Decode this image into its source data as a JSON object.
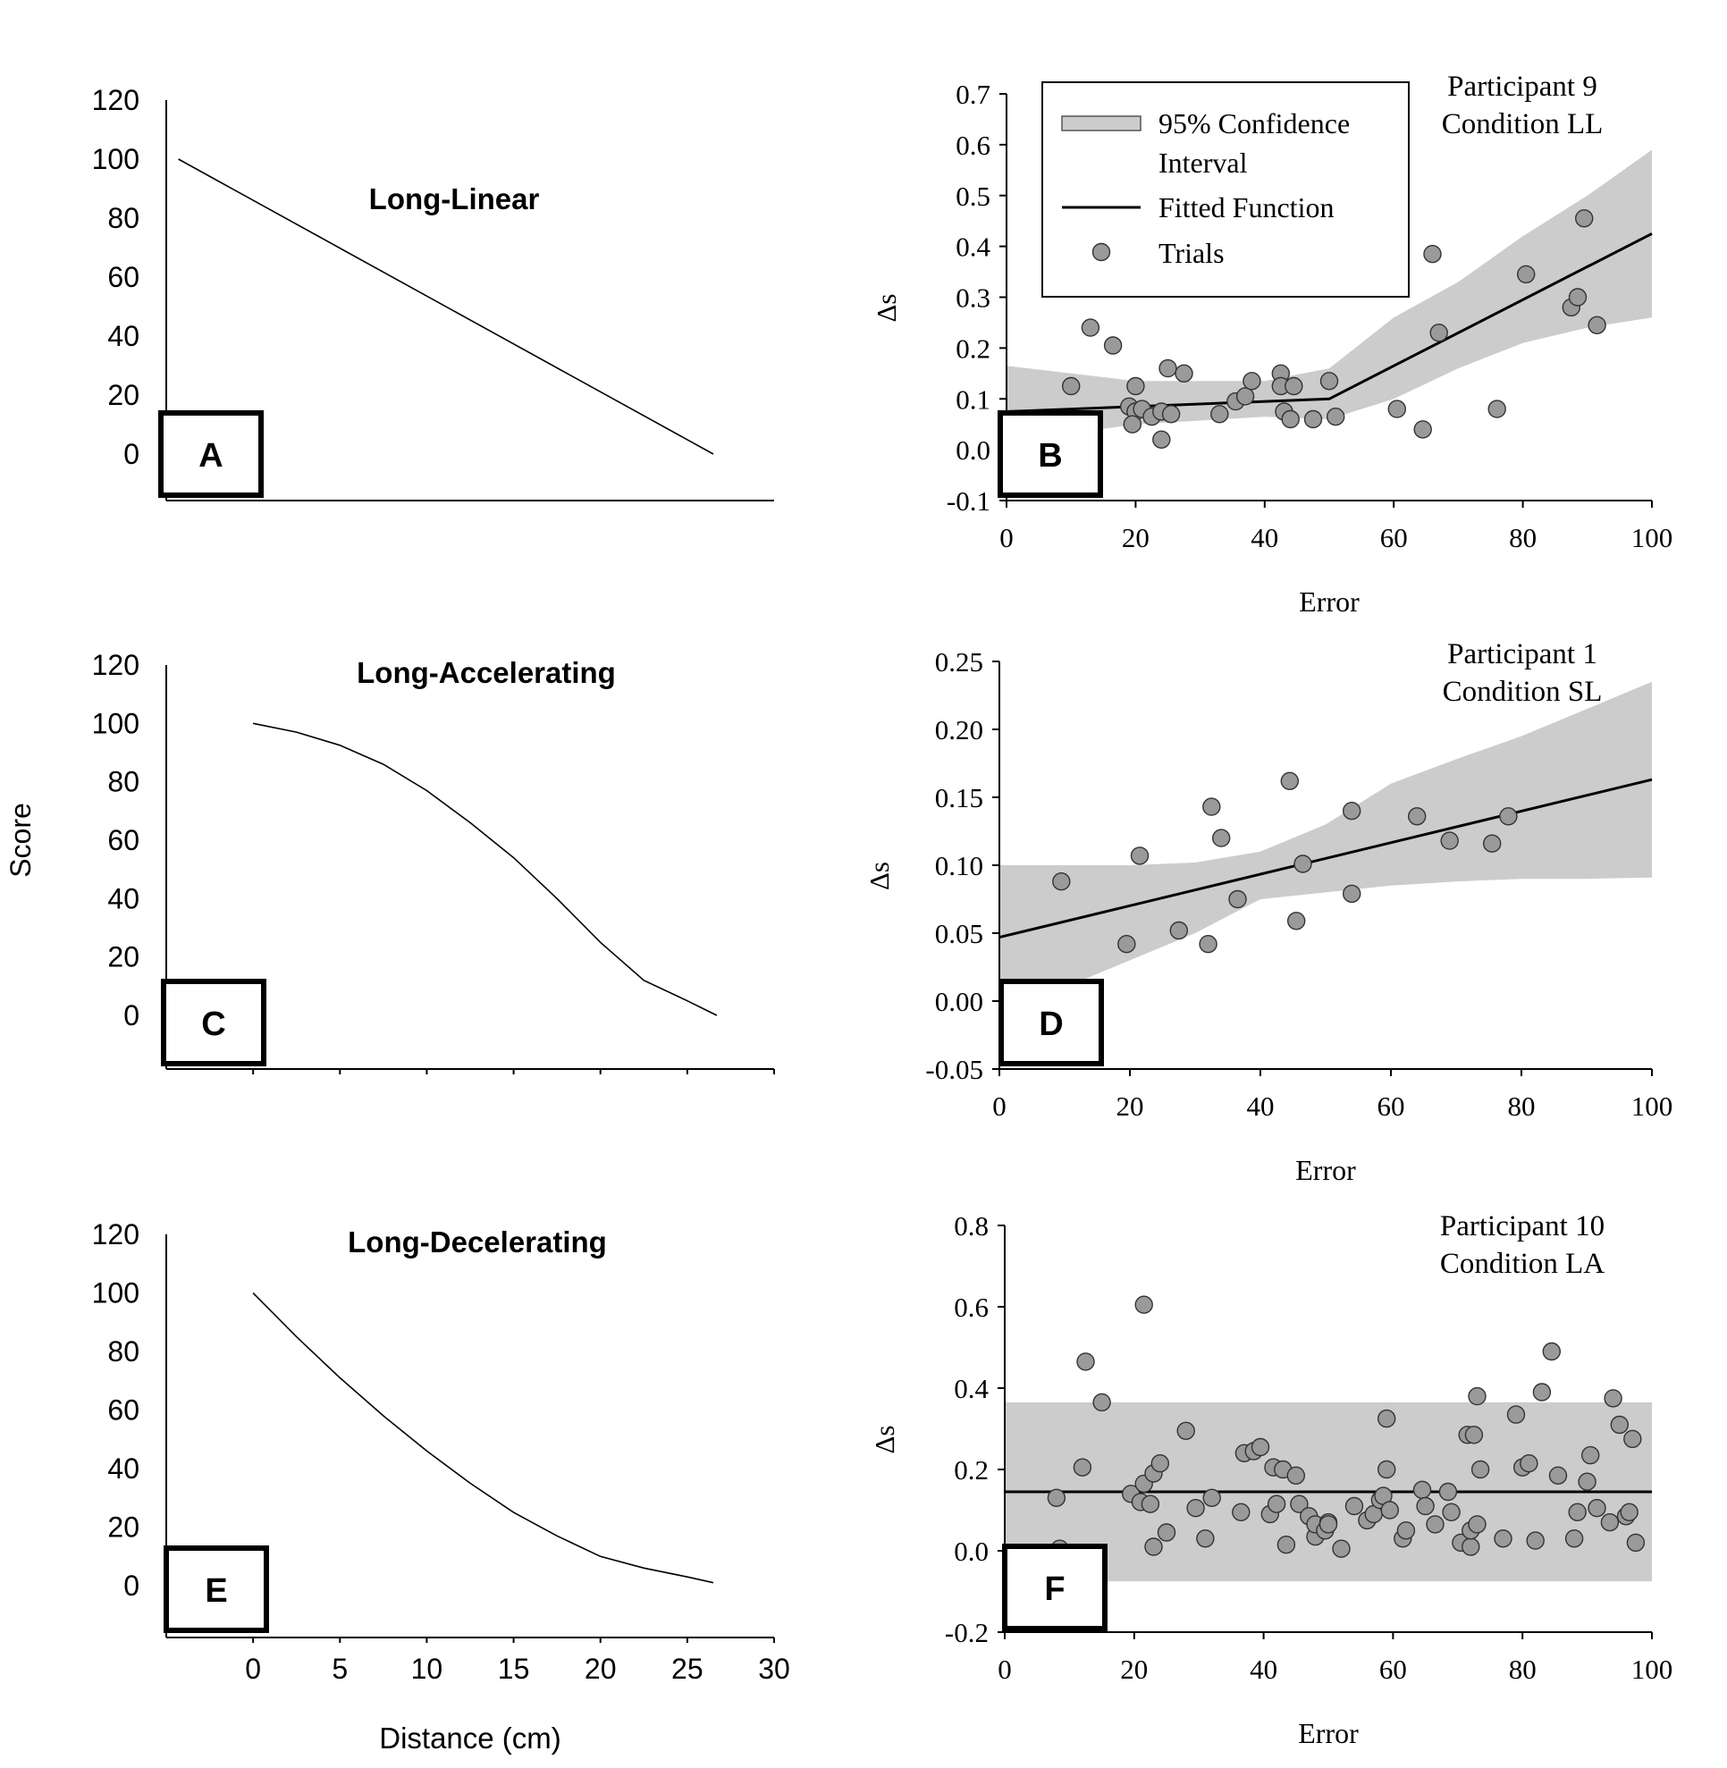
{
  "figure": {
    "shared_ylabel": "Score",
    "shared_xlabel": "Distance (cm)",
    "legend": {
      "ci_label_line1": "95% Confidence",
      "ci_label_line2": "Interval",
      "fit_label": "Fitted Function",
      "trials_label": "Trials"
    }
  },
  "chart_data": [
    {
      "panel": "A",
      "type": "line",
      "title": "Long-Linear",
      "xlabel": "",
      "ylabel": "Score",
      "xlim": [
        -5,
        30
      ],
      "ylim": [
        -15,
        120
      ],
      "y_ticks": [
        0,
        20,
        40,
        60,
        80,
        100,
        120
      ],
      "x_ticks": [],
      "series": [
        {
          "name": "score",
          "x": [
            -4.3,
            26.5
          ],
          "y": [
            100,
            0
          ]
        }
      ]
    },
    {
      "panel": "B",
      "type": "scatter",
      "title": "Participant 9",
      "subtitle": "Condition LL",
      "xlabel": "Error",
      "ylabel": "Δs",
      "xlim": [
        0,
        100
      ],
      "ylim": [
        -0.1,
        0.7
      ],
      "y_ticks": [
        -0.1,
        0.0,
        0.1,
        0.2,
        0.3,
        0.4,
        0.5,
        0.6,
        0.7
      ],
      "y_decimals": 1,
      "x_ticks": [
        0,
        20,
        40,
        60,
        80,
        100
      ],
      "legend": true,
      "fit": {
        "x": [
          0,
          50,
          100
        ],
        "y": [
          0.075,
          0.1,
          0.425
        ]
      },
      "ci_upper": {
        "x": [
          0,
          20,
          40,
          50,
          60,
          70,
          80,
          90,
          100
        ],
        "y": [
          0.165,
          0.135,
          0.135,
          0.16,
          0.26,
          0.33,
          0.42,
          0.5,
          0.59
        ]
      },
      "ci_lower": {
        "x": [
          0,
          20,
          40,
          50,
          60,
          70,
          80,
          90,
          100
        ],
        "y": [
          0.015,
          0.05,
          0.065,
          0.06,
          0.1,
          0.16,
          0.21,
          0.24,
          0.26
        ]
      },
      "points": {
        "x": [
          10,
          13,
          16.5,
          20,
          19,
          20,
          19.5,
          21,
          22.5,
          24,
          24,
          25,
          25.5,
          27.5,
          33,
          35.5,
          37,
          38,
          42.5,
          42.5,
          43,
          44,
          44.5,
          47.5,
          50,
          51,
          60.5,
          64.5,
          66,
          67,
          76,
          80.5,
          87.5,
          88.5,
          89.5,
          91.5
        ],
        "y": [
          0.125,
          0.24,
          0.205,
          0.125,
          0.085,
          0.075,
          0.05,
          0.08,
          0.065,
          0.075,
          0.02,
          0.16,
          0.07,
          0.15,
          0.07,
          0.095,
          0.105,
          0.135,
          0.15,
          0.125,
          0.075,
          0.06,
          0.125,
          0.06,
          0.135,
          0.065,
          0.08,
          0.04,
          0.385,
          0.23,
          0.08,
          0.345,
          0.28,
          0.3,
          0.455,
          0.245
        ]
      }
    },
    {
      "panel": "C",
      "type": "line",
      "title": "Long-Accelerating",
      "xlabel": "",
      "ylabel": "Score",
      "xlim": [
        -5,
        30
      ],
      "ylim": [
        -15,
        120
      ],
      "y_ticks": [
        0,
        20,
        40,
        60,
        80,
        100,
        120
      ],
      "x_ticks": [
        0,
        5,
        10,
        15,
        20,
        25,
        30
      ],
      "x_tick_labels": false,
      "series": [
        {
          "name": "score",
          "x": [
            0,
            2.5,
            5,
            7.5,
            10,
            12.5,
            15,
            17.5,
            20,
            22.5,
            25,
            26.7
          ],
          "y": [
            100,
            97,
            92.5,
            86,
            77,
            66,
            54,
            40,
            25,
            12,
            5,
            0
          ]
        }
      ]
    },
    {
      "panel": "D",
      "type": "scatter",
      "title": "Participant 1",
      "subtitle": "Condition SL",
      "xlabel": "Error",
      "ylabel": "Δs",
      "xlim": [
        0,
        100
      ],
      "ylim": [
        -0.05,
        0.25
      ],
      "y_ticks": [
        -0.05,
        0.0,
        0.05,
        0.1,
        0.15,
        0.2,
        0.25
      ],
      "y_decimals": 2,
      "x_ticks": [
        0,
        20,
        40,
        60,
        80,
        100
      ],
      "legend": false,
      "fit": {
        "x": [
          0,
          100
        ],
        "y": [
          0.047,
          0.163
        ]
      },
      "ci_upper": {
        "x": [
          0,
          20,
          30,
          40,
          50,
          60,
          70,
          80,
          90,
          100
        ],
        "y": [
          0.1,
          0.1,
          0.102,
          0.11,
          0.13,
          0.16,
          0.178,
          0.195,
          0.215,
          0.235
        ]
      },
      "ci_lower": {
        "x": [
          0,
          10,
          20,
          30,
          40,
          50,
          60,
          70,
          80,
          90,
          100
        ],
        "y": [
          0.012,
          0.01,
          0.03,
          0.05,
          0.075,
          0.08,
          0.085,
          0.088,
          0.09,
          0.09,
          0.091
        ]
      },
      "points": {
        "x": [
          9.5,
          19.5,
          21.5,
          27.5,
          32,
          32.5,
          34,
          36.5,
          44.5,
          45.5,
          46.5,
          54,
          54,
          64,
          69,
          75.5,
          78
        ],
        "y": [
          0.088,
          0.042,
          0.107,
          0.052,
          0.042,
          0.143,
          0.12,
          0.075,
          0.162,
          0.059,
          0.101,
          0.14,
          0.079,
          0.136,
          0.118,
          0.116,
          0.136
        ]
      }
    },
    {
      "panel": "E",
      "type": "line",
      "title": "Long-Decelerating",
      "xlabel": "Distance (cm)",
      "ylabel": "Score",
      "xlim": [
        -5,
        30
      ],
      "ylim": [
        -15,
        120
      ],
      "y_ticks": [
        0,
        20,
        40,
        60,
        80,
        100,
        120
      ],
      "x_ticks": [
        0,
        5,
        10,
        15,
        20,
        25,
        30
      ],
      "x_tick_labels": true,
      "series": [
        {
          "name": "score",
          "x": [
            0,
            2.5,
            5,
            7.5,
            10,
            12.5,
            15,
            17.5,
            20,
            22.5,
            25,
            26.5
          ],
          "y": [
            100,
            85,
            71,
            58,
            46,
            35,
            25,
            17,
            10,
            6,
            3,
            1
          ]
        }
      ]
    },
    {
      "panel": "F",
      "type": "scatter",
      "title": "Participant 10",
      "subtitle": "Condition LA",
      "xlabel": "Error",
      "ylabel": "Δs",
      "xlim": [
        0,
        100
      ],
      "ylim": [
        -0.2,
        0.8
      ],
      "y_ticks": [
        -0.2,
        0.0,
        0.2,
        0.4,
        0.6,
        0.8
      ],
      "y_decimals": 1,
      "x_ticks": [
        0,
        20,
        40,
        60,
        80,
        100
      ],
      "legend": false,
      "fit": {
        "x": [
          0,
          100
        ],
        "y": [
          0.145,
          0.145
        ]
      },
      "ci_upper": {
        "x": [
          0,
          100
        ],
        "y": [
          0.365,
          0.365
        ]
      },
      "ci_lower": {
        "x": [
          0,
          100
        ],
        "y": [
          -0.075,
          -0.075
        ]
      },
      "points": {
        "x": [
          8,
          8.5,
          12,
          12.5,
          15,
          19.5,
          21,
          21.5,
          21.5,
          22.5,
          23,
          23,
          24,
          25,
          28,
          29.5,
          31,
          32,
          36.5,
          37,
          38.5,
          39.5,
          41,
          41.5,
          42,
          43,
          43.5,
          45,
          45.5,
          47,
          48,
          48,
          49.5,
          50,
          50,
          52,
          54,
          56,
          57,
          58,
          58.5,
          59,
          59,
          59.5,
          61.5,
          62,
          64.5,
          65,
          66.5,
          68.5,
          69,
          70.5,
          71.5,
          72,
          72,
          72.5,
          73,
          73,
          73.5,
          77,
          79,
          80,
          81,
          82,
          83,
          84.5,
          85.5,
          88,
          88.5,
          90,
          90.5,
          91.5,
          93.5,
          94,
          95,
          96,
          96.5,
          97,
          97.5
        ],
        "y": [
          0.13,
          0.005,
          0.205,
          0.465,
          0.365,
          0.14,
          0.12,
          0.605,
          0.165,
          0.115,
          0.01,
          0.19,
          0.215,
          0.045,
          0.295,
          0.105,
          0.03,
          0.13,
          0.095,
          0.24,
          0.245,
          0.255,
          0.09,
          0.205,
          0.115,
          0.2,
          0.015,
          0.185,
          0.115,
          0.085,
          0.035,
          0.065,
          0.05,
          0.07,
          0.065,
          0.005,
          0.11,
          0.075,
          0.09,
          0.125,
          0.135,
          0.2,
          0.325,
          0.1,
          0.03,
          0.05,
          0.15,
          0.11,
          0.065,
          0.145,
          0.095,
          0.02,
          0.285,
          0.01,
          0.05,
          0.285,
          0.38,
          0.065,
          0.2,
          0.03,
          0.335,
          0.205,
          0.215,
          0.025,
          0.39,
          0.49,
          0.185,
          0.03,
          0.095,
          0.17,
          0.235,
          0.105,
          0.07,
          0.375,
          0.31,
          0.085,
          0.095,
          0.275,
          0.02
        ]
      }
    }
  ]
}
